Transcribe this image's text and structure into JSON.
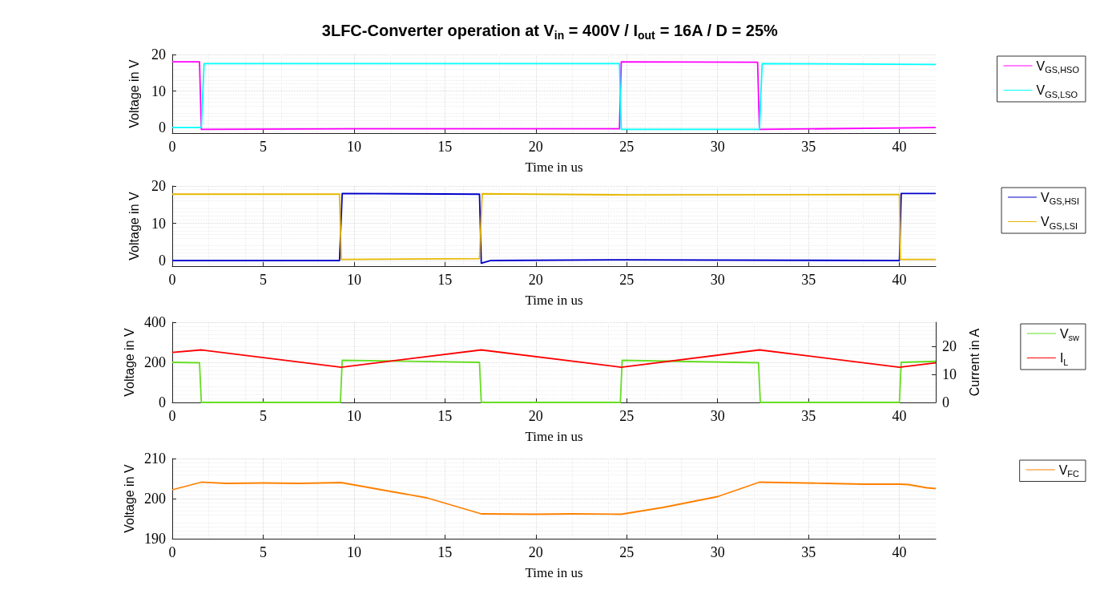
{
  "chart_data": [
    {
      "type": "line",
      "title": "3LFC-Converter operation at V$_{in}$ = 400V / I$_{out}$ = 16A / D = 25%",
      "xlabel": "Time in us",
      "ylabel": "Voltage in V",
      "xlim": [
        0,
        42
      ],
      "xticks": [
        0,
        5,
        10,
        15,
        20,
        25,
        30,
        35,
        40
      ],
      "ylim": [
        -1.5,
        20
      ],
      "yticks": [
        0,
        10,
        20
      ],
      "grid": true,
      "legend": "top right",
      "series": [
        {
          "name": "V$_{GS,HSO}$",
          "color": "#ff00ff",
          "x": [
            0,
            1.5,
            1.6,
            10,
            24.6,
            24.7,
            32.2,
            32.3,
            42
          ],
          "values": [
            18,
            18,
            -0.5,
            -0.3,
            -0.3,
            18,
            17.9,
            -0.5,
            0
          ]
        },
        {
          "name": "V$_{GS,LSO}$",
          "color": "#00ffff",
          "x": [
            0,
            1.6,
            1.75,
            24.6,
            24.7,
            32.3,
            32.45,
            42
          ],
          "values": [
            0,
            0,
            17.5,
            17.5,
            -0.5,
            -0.5,
            17.5,
            17.3
          ]
        }
      ]
    },
    {
      "type": "line",
      "xlabel": "Time in us",
      "ylabel": "Voltage in V",
      "xlim": [
        0,
        42
      ],
      "xticks": [
        0,
        5,
        10,
        15,
        20,
        25,
        30,
        35,
        40
      ],
      "ylim": [
        -1.5,
        20
      ],
      "yticks": [
        0,
        10,
        20
      ],
      "grid": true,
      "legend": "top right",
      "series": [
        {
          "name": "V$_{GS,HSI}$",
          "color": "#0000cc",
          "x": [
            0,
            9.2,
            9.35,
            16.9,
            17.0,
            17.5,
            25,
            40,
            40.1,
            42
          ],
          "values": [
            0,
            0,
            18,
            17.8,
            -0.7,
            0,
            0.2,
            0,
            18,
            18
          ]
        },
        {
          "name": "V$_{GS,LSI}$",
          "color": "#e6b800",
          "x": [
            0,
            9.2,
            9.3,
            16.9,
            17.05,
            25,
            40,
            40.05,
            42
          ],
          "values": [
            17.8,
            17.8,
            0.3,
            0.5,
            17.9,
            17.6,
            17.7,
            0.3,
            0.3
          ]
        }
      ]
    },
    {
      "type": "line",
      "xlabel": "Time in us",
      "ylabel": "Voltage in V",
      "y2label": "Current in A",
      "xlim": [
        0,
        42
      ],
      "xticks": [
        0,
        5,
        10,
        15,
        20,
        25,
        30,
        35,
        40
      ],
      "ylim": [
        0,
        400
      ],
      "yticks": [
        0,
        200,
        400
      ],
      "y2lim": [
        0,
        28.7
      ],
      "y2ticks": [
        0,
        10,
        20
      ],
      "grid": true,
      "legend": "top right",
      "series": [
        {
          "name": "V$_{sw}$",
          "color": "#66dd22",
          "x": [
            0,
            1.5,
            1.6,
            9.25,
            9.35,
            16.9,
            17.0,
            24.65,
            24.75,
            32.25,
            32.35,
            40,
            40.1,
            42
          ],
          "values": [
            200,
            198,
            0,
            0,
            210,
            200,
            0,
            0,
            210,
            198,
            0,
            0,
            200,
            205
          ]
        },
        {
          "name": "I$_{L}$",
          "color": "#ff0000",
          "axis": "y2",
          "x": [
            0,
            1.6,
            9.3,
            17,
            24.7,
            32.3,
            40,
            42
          ],
          "values": [
            17.9,
            18.8,
            12.6,
            18.8,
            12.6,
            18.8,
            12.6,
            14.2
          ]
        }
      ]
    },
    {
      "type": "line",
      "xlabel": "Time in us",
      "ylabel": "Voltage in V",
      "xlim": [
        0,
        42
      ],
      "xticks": [
        0,
        5,
        10,
        15,
        20,
        25,
        30,
        35,
        40
      ],
      "ylim": [
        190,
        210
      ],
      "yticks": [
        190,
        200,
        210
      ],
      "grid": true,
      "legend": "top right",
      "series": [
        {
          "name": "V$_{FC}$",
          "color": "#ff8000",
          "x": [
            0,
            1.6,
            3,
            5,
            7,
            9.3,
            12,
            14,
            17,
            20,
            22,
            24.7,
            27,
            30,
            32.3,
            36,
            38,
            40,
            40.5,
            41.5,
            42
          ],
          "values": [
            202.2,
            204.1,
            203.8,
            203.9,
            203.8,
            204,
            201.8,
            200.2,
            196.2,
            196.1,
            196.2,
            196.1,
            197.8,
            200.5,
            204.1,
            203.8,
            203.6,
            203.6,
            203.5,
            202.7,
            202.5
          ]
        }
      ]
    }
  ]
}
